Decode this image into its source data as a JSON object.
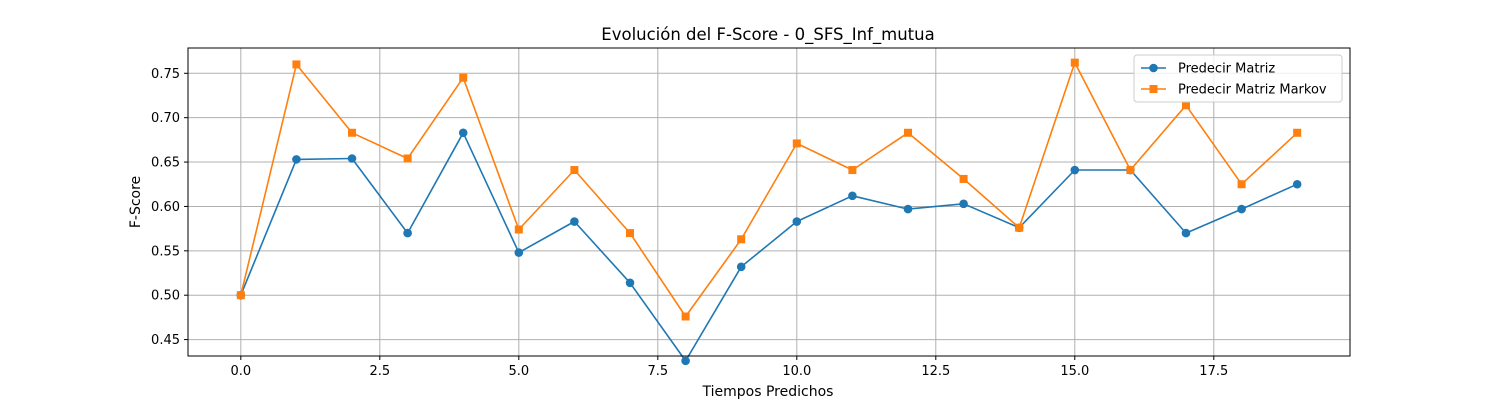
{
  "chart_data": {
    "type": "line",
    "title": "Evolución del F-Score - 0_SFS_Inf_mutua",
    "xlabel": "Tiempos Predichos",
    "ylabel": "F-Score",
    "x": [
      0,
      1,
      2,
      3,
      4,
      5,
      6,
      7,
      8,
      9,
      10,
      11,
      12,
      13,
      14,
      15,
      16,
      17,
      18,
      19
    ],
    "xlim": [
      -0.95,
      19.95
    ],
    "ylim": [
      0.4315,
      0.7785
    ],
    "xticks": [
      0.0,
      2.5,
      5.0,
      7.5,
      10.0,
      12.5,
      15.0,
      17.5
    ],
    "xtick_labels": [
      "0.0",
      "2.5",
      "5.0",
      "7.5",
      "10.0",
      "12.5",
      "15.0",
      "17.5"
    ],
    "yticks": [
      0.45,
      0.5,
      0.55,
      0.6,
      0.65,
      0.7,
      0.75
    ],
    "ytick_labels": [
      "0.45",
      "0.50",
      "0.55",
      "0.60",
      "0.65",
      "0.70",
      "0.75"
    ],
    "grid": true,
    "legend_position": "top-right",
    "series": [
      {
        "name": "Predecir Matriz",
        "color": "#1f77b4",
        "marker": "circle",
        "values": [
          0.5,
          0.653,
          0.654,
          0.57,
          0.683,
          0.548,
          0.583,
          0.514,
          0.426,
          0.532,
          0.583,
          0.612,
          0.597,
          0.603,
          0.576,
          0.641,
          0.641,
          0.57,
          0.597,
          0.625
        ]
      },
      {
        "name": "Predecir Matriz Markov",
        "color": "#ff7f0e",
        "marker": "square",
        "values": [
          0.5,
          0.76,
          0.683,
          0.654,
          0.745,
          0.574,
          0.641,
          0.57,
          0.476,
          0.563,
          0.671,
          0.641,
          0.683,
          0.631,
          0.576,
          0.762,
          0.641,
          0.714,
          0.625,
          0.683
        ]
      }
    ]
  }
}
